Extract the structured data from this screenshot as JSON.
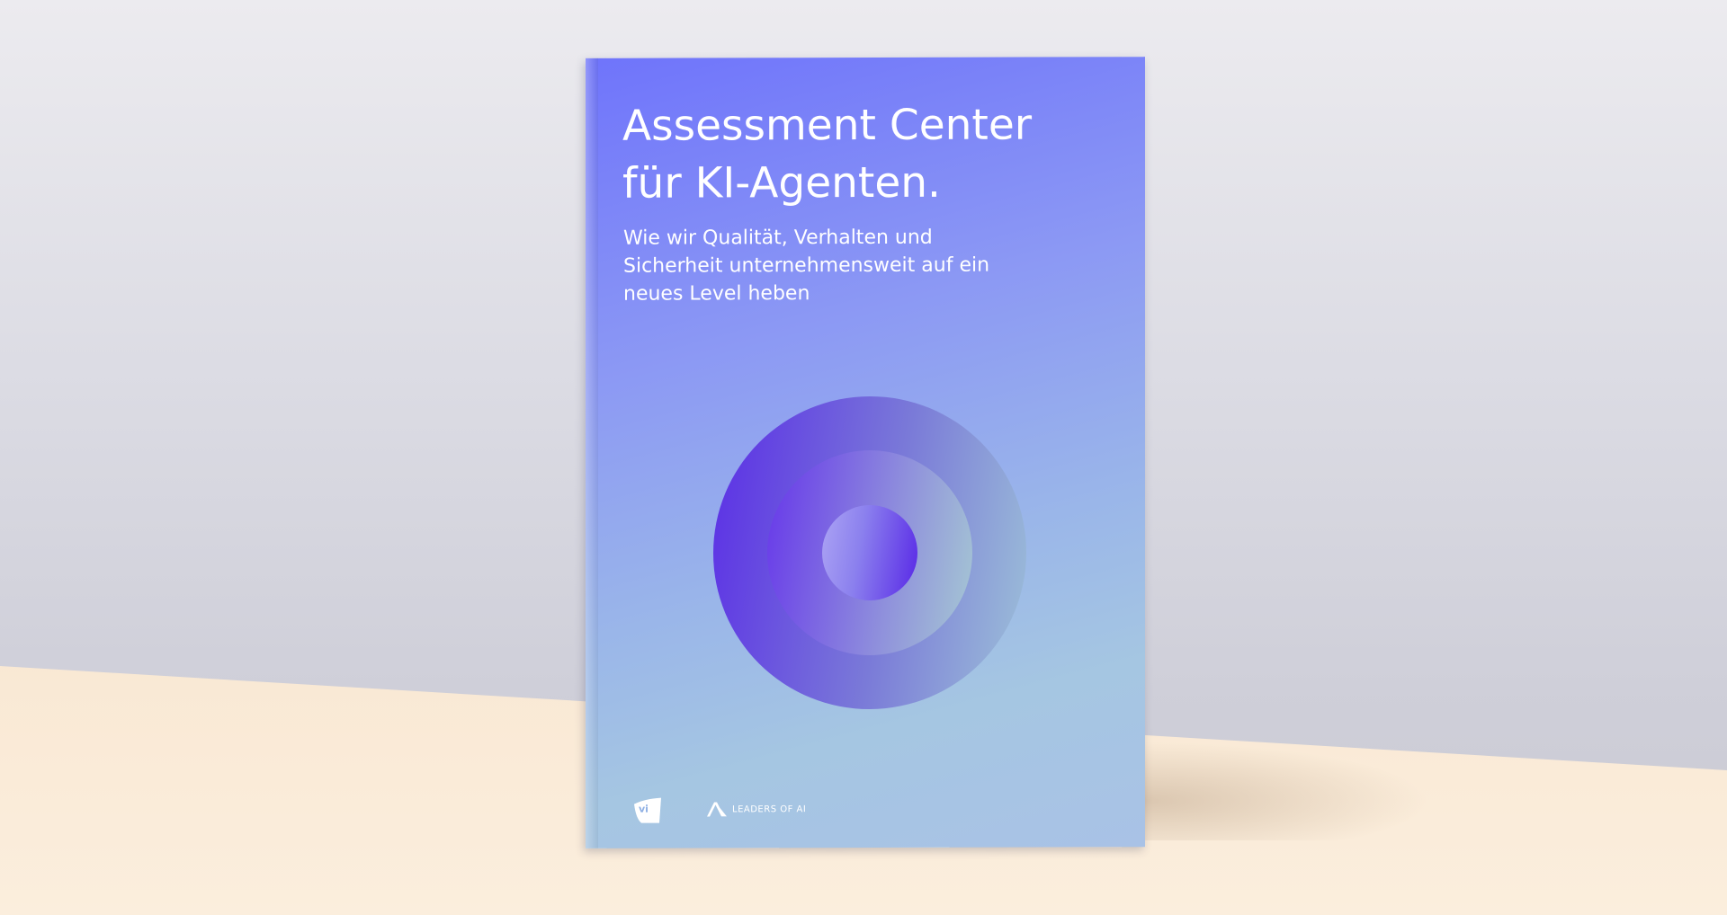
{
  "book": {
    "title_line1": "Assessment Center",
    "title_line2": "für KI-Agenten.",
    "subtitle_line1": "Wie wir Qualität, Verhalten und",
    "subtitle_line2": "Sicherheit unternehmensweit auf ein",
    "subtitle_line3": "neues Level heben",
    "logos": {
      "left": "vi",
      "right": "LEADERS OF AI"
    },
    "colors": {
      "cover_top": "#6f74fb",
      "cover_bottom": "#a5c6e2",
      "circle": "#5a2de6"
    }
  }
}
